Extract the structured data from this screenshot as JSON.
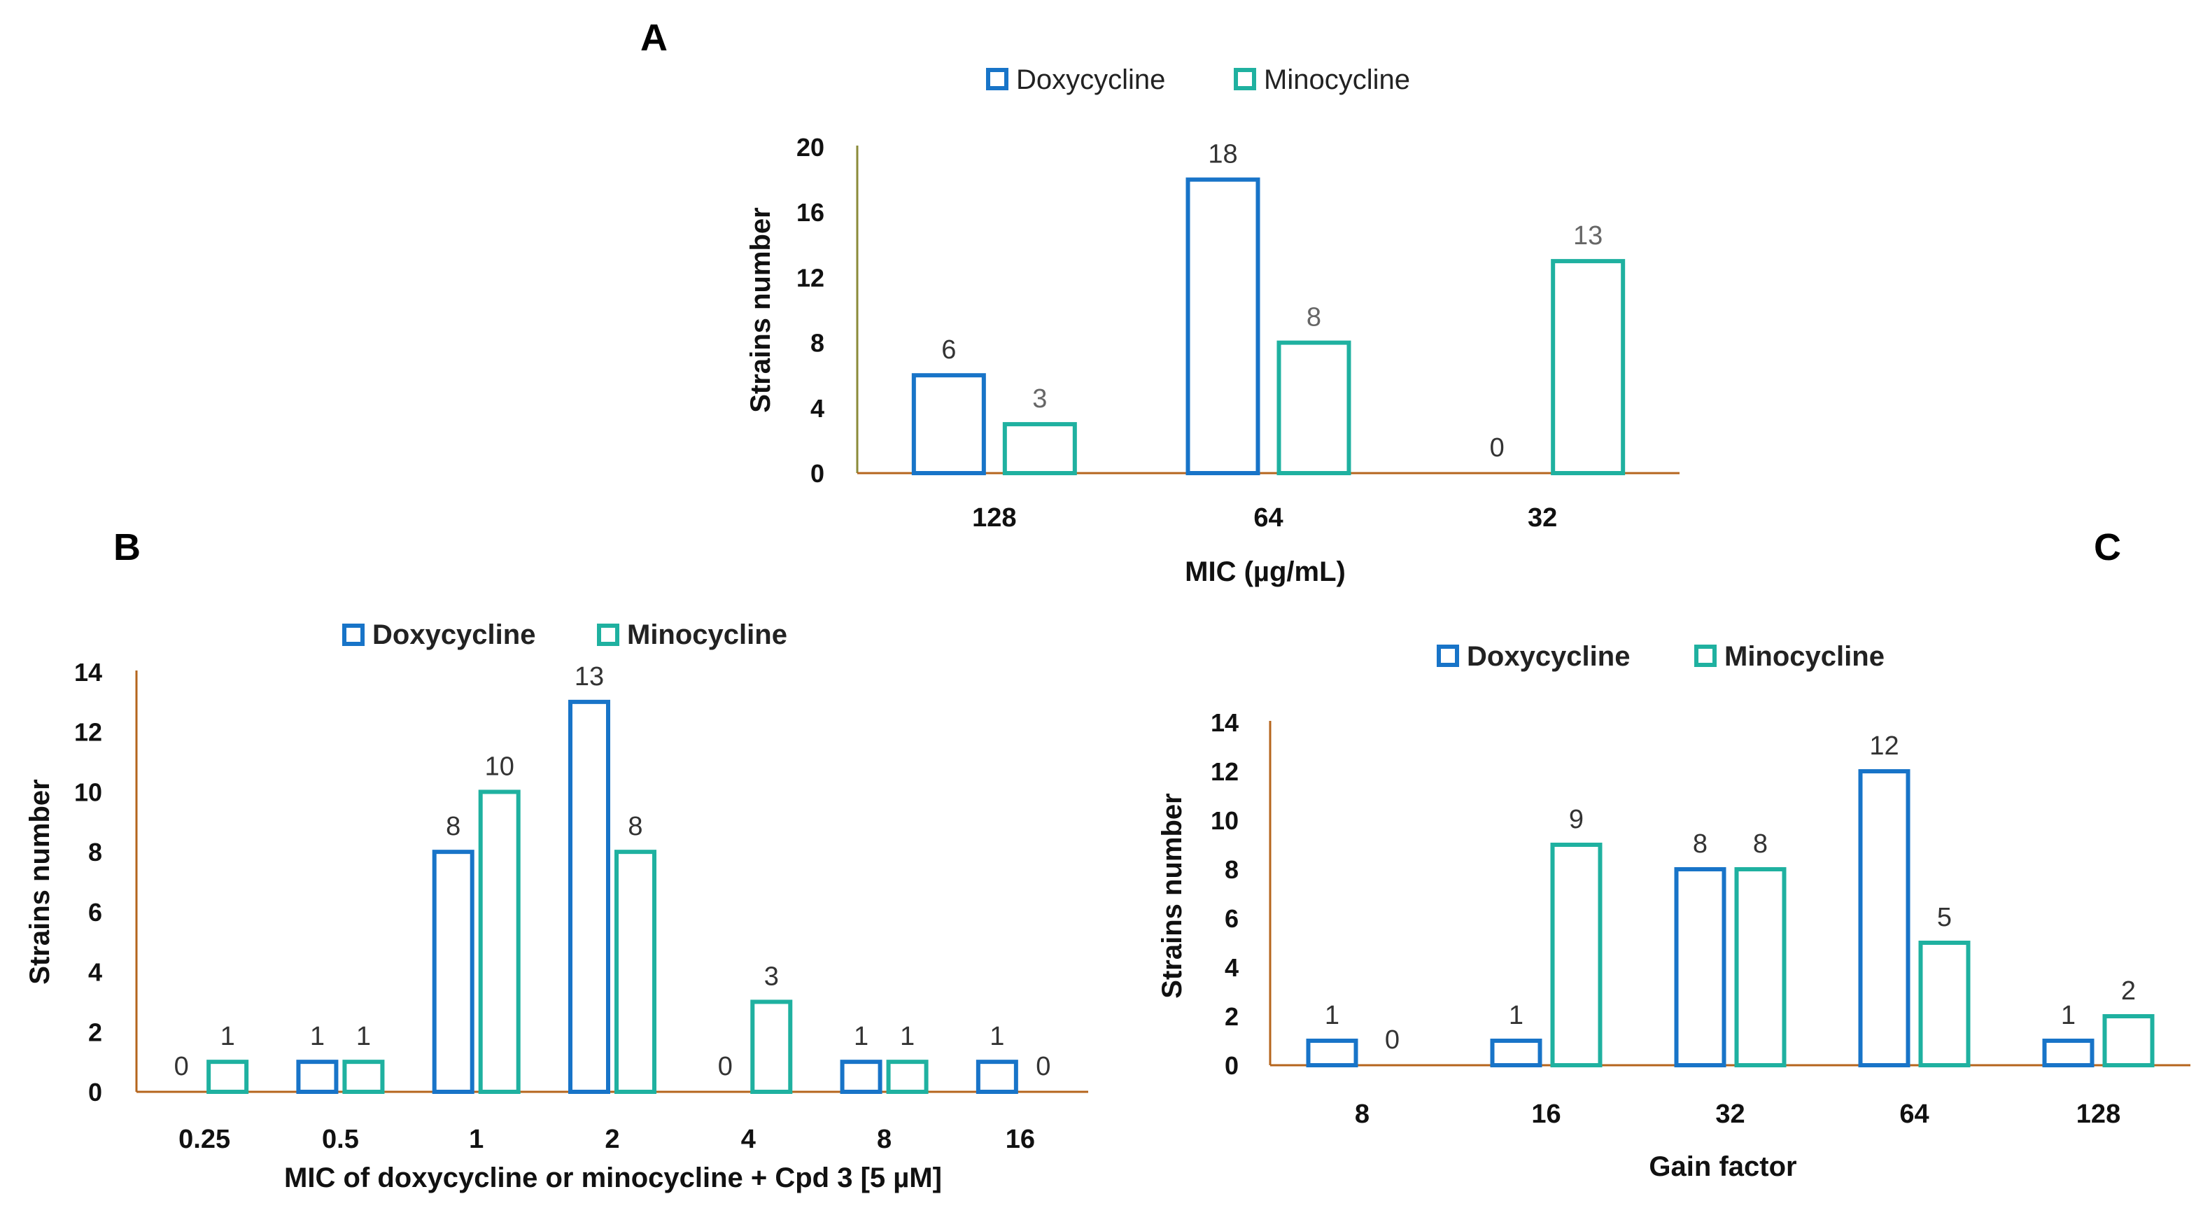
{
  "colors": {
    "doxy": "#1874c8",
    "mino": "#1fb1a0",
    "axis": "#b5651d",
    "axis_a": "#8b8b3a"
  },
  "chart_data": [
    {
      "panel": "A",
      "type": "bar",
      "legend": [
        "Doxycycline",
        "Minocycline"
      ],
      "categories": [
        "128",
        "64",
        "32"
      ],
      "series": [
        {
          "name": "Doxycycline",
          "values": [
            6,
            18,
            0
          ]
        },
        {
          "name": "Minocycline",
          "values": [
            3,
            8,
            13
          ]
        }
      ],
      "ylim": [
        0,
        20
      ],
      "yticks": [
        "0",
        "4",
        "8",
        "12",
        "16",
        "20"
      ],
      "ylabel": "Strains number",
      "xlabel": "MIC (µg/mL)"
    },
    {
      "panel": "B",
      "type": "bar",
      "legend": [
        "Doxycycline",
        "Minocycline"
      ],
      "categories": [
        "0.25",
        "0.5",
        "1",
        "2",
        "4",
        "8",
        "16"
      ],
      "series": [
        {
          "name": "Doxycycline",
          "values": [
            0,
            1,
            8,
            13,
            0,
            1,
            1
          ]
        },
        {
          "name": "Minocycline",
          "values": [
            1,
            1,
            10,
            8,
            3,
            1,
            0
          ]
        }
      ],
      "ylim": [
        0,
        14
      ],
      "yticks": [
        "0",
        "2",
        "4",
        "6",
        "8",
        "10",
        "12",
        "14"
      ],
      "ylabel": "Strains number",
      "xlabel": "MIC of doxycycline or minocycline + Cpd 3 [5 µM]"
    },
    {
      "panel": "C",
      "type": "bar",
      "legend": [
        "Doxycycline",
        "Minocycline"
      ],
      "categories": [
        "8",
        "16",
        "32",
        "64",
        "128"
      ],
      "series": [
        {
          "name": "Doxycycline",
          "values": [
            1,
            1,
            8,
            12,
            1
          ]
        },
        {
          "name": "Minocycline",
          "values": [
            0,
            9,
            8,
            5,
            2
          ]
        }
      ],
      "ylim": [
        0,
        14
      ],
      "yticks": [
        "0",
        "2",
        "4",
        "6",
        "8",
        "10",
        "12",
        "14"
      ],
      "ylabel": "Strains number",
      "xlabel": "Gain factor"
    }
  ]
}
